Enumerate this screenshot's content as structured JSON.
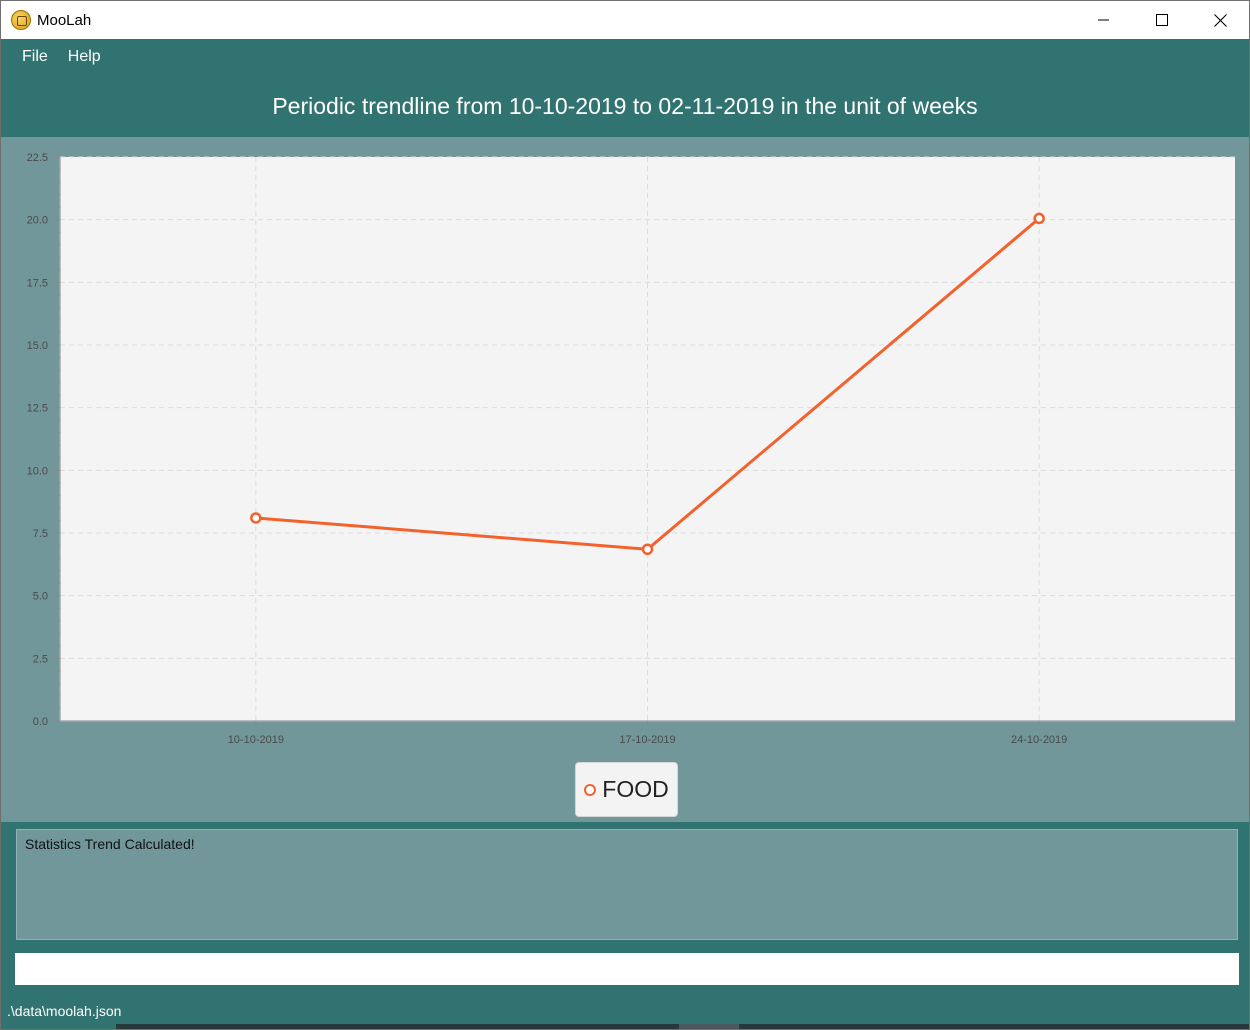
{
  "window": {
    "title": "MooLah",
    "controls": {
      "minimize": "minimize-icon",
      "maximize": "maximize-icon",
      "close": "close-icon"
    }
  },
  "menu": {
    "items": [
      {
        "label": "File"
      },
      {
        "label": "Help"
      }
    ]
  },
  "header": {
    "title": "Periodic trendline from 10-10-2019 to 02-11-2019 in the unit of weeks"
  },
  "chart_data": {
    "type": "line",
    "categories": [
      "10-10-2019",
      "17-10-2019",
      "24-10-2019"
    ],
    "series": [
      {
        "name": "FOOD",
        "values": [
          8.1,
          6.85,
          20.05
        ],
        "color": "#f3622d"
      }
    ],
    "ylim": [
      0,
      22.5
    ],
    "yticks": [
      0.0,
      2.5,
      5.0,
      7.5,
      10.0,
      12.5,
      15.0,
      17.5,
      20.0,
      22.5
    ],
    "grid": true,
    "legend": "bottom-center"
  },
  "result": {
    "text": "Statistics Trend Calculated!"
  },
  "command": {
    "value": "",
    "placeholder": ""
  },
  "status": {
    "path": ".\\data\\moolah.json"
  },
  "colors": {
    "primary": "#317370",
    "panel": "#72979a",
    "plot_bg": "#f4f4f4",
    "series": "#f3622d"
  }
}
